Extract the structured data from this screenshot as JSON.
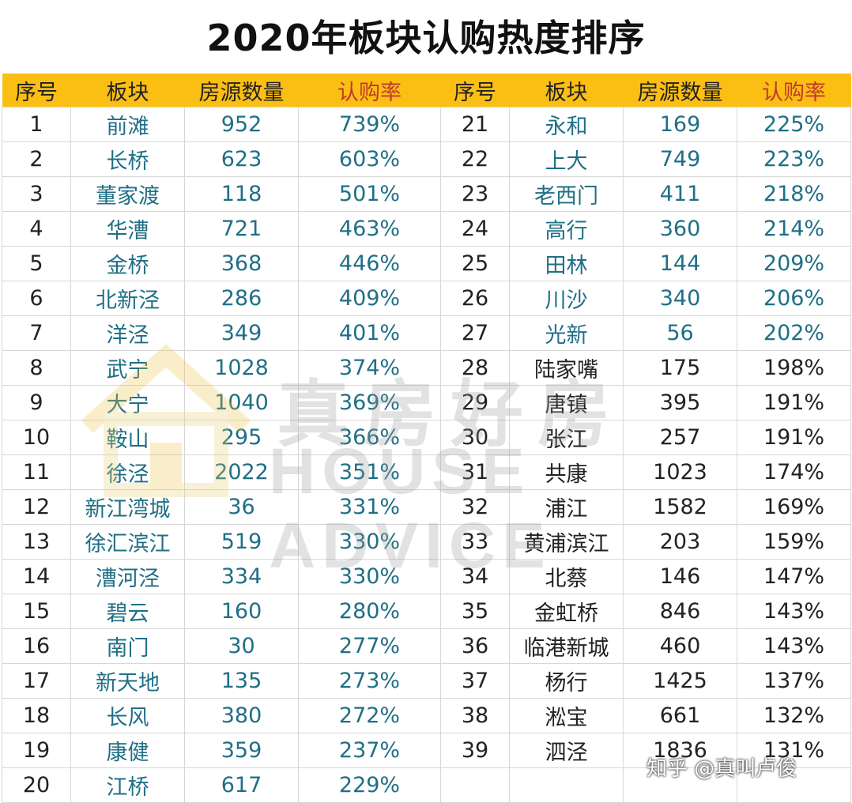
{
  "title": "2020年板块认购热度排序",
  "headers": [
    "序号",
    "板块",
    "房源数量",
    "认购率",
    "序号",
    "板块",
    "房源数量",
    "认购率"
  ],
  "left_rows": [
    {
      "no": "1",
      "area": "前滩",
      "count": "952",
      "rate": "739%"
    },
    {
      "no": "2",
      "area": "长桥",
      "count": "623",
      "rate": "603%"
    },
    {
      "no": "3",
      "area": "董家渡",
      "count": "118",
      "rate": "501%"
    },
    {
      "no": "4",
      "area": "华漕",
      "count": "721",
      "rate": "463%"
    },
    {
      "no": "5",
      "area": "金桥",
      "count": "368",
      "rate": "446%"
    },
    {
      "no": "6",
      "area": "北新泾",
      "count": "286",
      "rate": "409%"
    },
    {
      "no": "7",
      "area": "洋泾",
      "count": "349",
      "rate": "401%"
    },
    {
      "no": "8",
      "area": "武宁",
      "count": "1028",
      "rate": "374%"
    },
    {
      "no": "9",
      "area": "大宁",
      "count": "1040",
      "rate": "369%"
    },
    {
      "no": "10",
      "area": "鞍山",
      "count": "295",
      "rate": "366%"
    },
    {
      "no": "11",
      "area": "徐泾",
      "count": "2022",
      "rate": "351%"
    },
    {
      "no": "12",
      "area": "新江湾城",
      "count": "36",
      "rate": "331%"
    },
    {
      "no": "13",
      "area": "徐汇滨江",
      "count": "519",
      "rate": "330%"
    },
    {
      "no": "14",
      "area": "漕河泾",
      "count": "334",
      "rate": "330%"
    },
    {
      "no": "15",
      "area": "碧云",
      "count": "160",
      "rate": "280%"
    },
    {
      "no": "16",
      "area": "南门",
      "count": "30",
      "rate": "277%"
    },
    {
      "no": "17",
      "area": "新天地",
      "count": "135",
      "rate": "273%"
    },
    {
      "no": "18",
      "area": "长风",
      "count": "380",
      "rate": "272%"
    },
    {
      "no": "19",
      "area": "康健",
      "count": "359",
      "rate": "237%"
    },
    {
      "no": "20",
      "area": "江桥",
      "count": "617",
      "rate": "229%"
    }
  ],
  "right_rows": [
    {
      "no": "21",
      "area": "永和",
      "count": "169",
      "rate": "225%"
    },
    {
      "no": "22",
      "area": "上大",
      "count": "749",
      "rate": "223%"
    },
    {
      "no": "23",
      "area": "老西门",
      "count": "411",
      "rate": "218%"
    },
    {
      "no": "24",
      "area": "高行",
      "count": "360",
      "rate": "214%"
    },
    {
      "no": "25",
      "area": "田林",
      "count": "144",
      "rate": "209%"
    },
    {
      "no": "26",
      "area": "川沙",
      "count": "340",
      "rate": "206%"
    },
    {
      "no": "27",
      "area": "光新",
      "count": "56",
      "rate": "202%"
    },
    {
      "no": "28",
      "area": "陆家嘴",
      "count": "175",
      "rate": "198%"
    },
    {
      "no": "29",
      "area": "唐镇",
      "count": "395",
      "rate": "191%"
    },
    {
      "no": "30",
      "area": "张江",
      "count": "257",
      "rate": "191%"
    },
    {
      "no": "31",
      "area": "共康",
      "count": "1023",
      "rate": "174%"
    },
    {
      "no": "32",
      "area": "浦江",
      "count": "1582",
      "rate": "169%"
    },
    {
      "no": "33",
      "area": "黄浦滨江",
      "count": "203",
      "rate": "159%"
    },
    {
      "no": "34",
      "area": "北蔡",
      "count": "146",
      "rate": "147%"
    },
    {
      "no": "35",
      "area": "金虹桥",
      "count": "846",
      "rate": "143%"
    },
    {
      "no": "36",
      "area": "临港新城",
      "count": "460",
      "rate": "143%"
    },
    {
      "no": "37",
      "area": "杨行",
      "count": "1425",
      "rate": "137%"
    },
    {
      "no": "38",
      "area": "淞宝",
      "count": "661",
      "rate": "132%"
    },
    {
      "no": "39",
      "area": "泗泾",
      "count": "1836",
      "rate": "131%"
    }
  ],
  "watermark": {
    "cn": "真房好房",
    "en": "HOUSE ADVICE"
  },
  "credit": "知乎 @真叫卢俊",
  "colors": {
    "header_bg": "#fbbf14",
    "teal_text": "#1f6f86",
    "rate_header": "#c0392b"
  }
}
